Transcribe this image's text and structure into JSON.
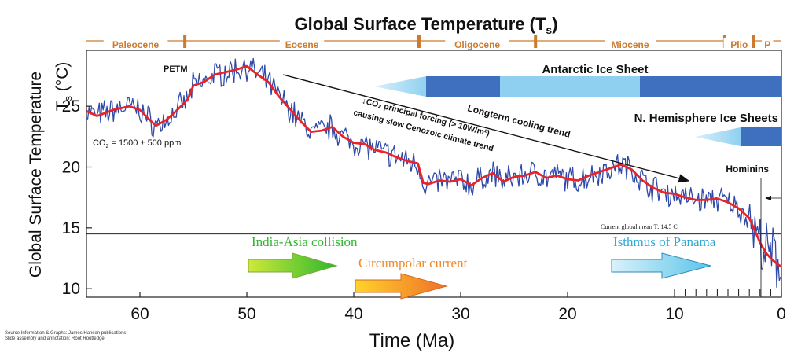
{
  "chart_data": {
    "type": "line",
    "title_main": "Global Surface Temperature (T",
    "title_sub": "s",
    "title_close": ")",
    "ylabel": "Global Surface Temperature",
    "ylabel_unit_main": "T",
    "ylabel_unit_sub": "s",
    "ylabel_unit_rest": " (°C)",
    "xlabel": "Time (Ma)",
    "x_ticks": [
      "60",
      "50",
      "40",
      "30",
      "20",
      "10",
      "0"
    ],
    "x_tick_values": [
      60,
      50,
      40,
      30,
      20,
      10,
      0
    ],
    "y_ticks": [
      "10",
      "15",
      "20",
      "25"
    ],
    "y_tick_values": [
      10,
      15,
      20,
      25
    ],
    "xlim": [
      65,
      0
    ],
    "ylim": [
      9.3,
      29.6
    ],
    "epochs": [
      {
        "name": "Paleocene",
        "start": 65,
        "end": 55.8
      },
      {
        "name": "Eocene",
        "start": 55.8,
        "end": 33.9
      },
      {
        "name": "Oligocene",
        "start": 33.9,
        "end": 23.0
      },
      {
        "name": "Miocene",
        "start": 23.0,
        "end": 5.3
      },
      {
        "name": "Plio",
        "start": 5.3,
        "end": 2.6
      },
      {
        "name": "P",
        "start": 2.6,
        "end": 0
      }
    ],
    "epoch_color": "#cc7a2e",
    "series_smoothed": {
      "color": "#e8232a",
      "x": [
        65,
        64,
        62.5,
        61,
        60,
        59,
        58.5,
        57.5,
        56.5,
        55.5,
        55,
        54,
        53,
        52,
        51,
        50,
        49,
        48,
        47,
        46,
        45,
        44,
        43,
        42,
        41,
        40,
        39,
        38,
        37,
        36,
        35,
        34,
        33.5,
        33,
        32,
        31,
        30,
        29,
        28,
        27,
        26,
        25,
        24,
        23,
        22,
        21,
        20,
        19,
        18,
        17,
        16,
        15,
        14,
        13,
        12,
        11,
        10,
        9,
        8,
        7,
        6,
        5,
        4,
        3,
        2.5,
        2,
        1.5,
        1,
        0.5,
        0
      ],
      "y": [
        24.6,
        24.2,
        24.7,
        25,
        24.7,
        23.8,
        23.4,
        23.9,
        24.7,
        25.6,
        26.7,
        27,
        27.6,
        27.8,
        28,
        28.3,
        27.6,
        27,
        25.8,
        24.8,
        23.8,
        22.9,
        23,
        23.3,
        22.5,
        22,
        21.9,
        21.4,
        21.2,
        20.8,
        20.5,
        20.3,
        18.7,
        18.6,
        18.9,
        18.8,
        19,
        18.5,
        19.1,
        19.5,
        18.8,
        19.2,
        19.3,
        19.6,
        19.1,
        19.3,
        19,
        18.9,
        19.3,
        19.6,
        19.9,
        20.2,
        19.8,
        18.9,
        18.3,
        17.9,
        17.8,
        17.5,
        17.3,
        17.3,
        17.4,
        17.1,
        16.6,
        15.8,
        14.8,
        13.8,
        13,
        12.5,
        12.1,
        11.8
      ]
    },
    "series_raw": {
      "color": "#2e4aa8",
      "noise_amplitude": 0.9
    },
    "reference_lines": [
      {
        "y": 20,
        "style": "dotted"
      },
      {
        "y": 14.5,
        "style": "solid",
        "label": "Current global mean T: 14.5 C"
      }
    ],
    "annotations": {
      "petm": "PETM",
      "co2": "CO",
      "co2_sub": "2",
      "co2_rest": " = 1500 ± 500 ppm",
      "longterm": "Longterm cooling trend",
      "forcing_line1": "↓CO₂ principal forcing (> 10W/m²)",
      "forcing_line2": "causing slow Cenozoic climate trend",
      "antarctic": "Antarctic Ice Sheet",
      "nhemi": "N. Hemisphere Ice Sheets",
      "hominins": "Hominins",
      "india": "India-Asia collision",
      "circumpolar": "Circumpolar current",
      "isthmus": "Isthmus of Panama"
    },
    "colors": {
      "ice_dark": "#3f6fbf",
      "ice_light": "#8fd0f0",
      "india": "#2db82d",
      "circumpolar": "#f0882a",
      "isthmus": "#2fa8d8"
    }
  },
  "source_line1": "Source Information & Graphs: James Hansen publications",
  "source_line2": "Slide assembly and annotation: Root Routledge"
}
